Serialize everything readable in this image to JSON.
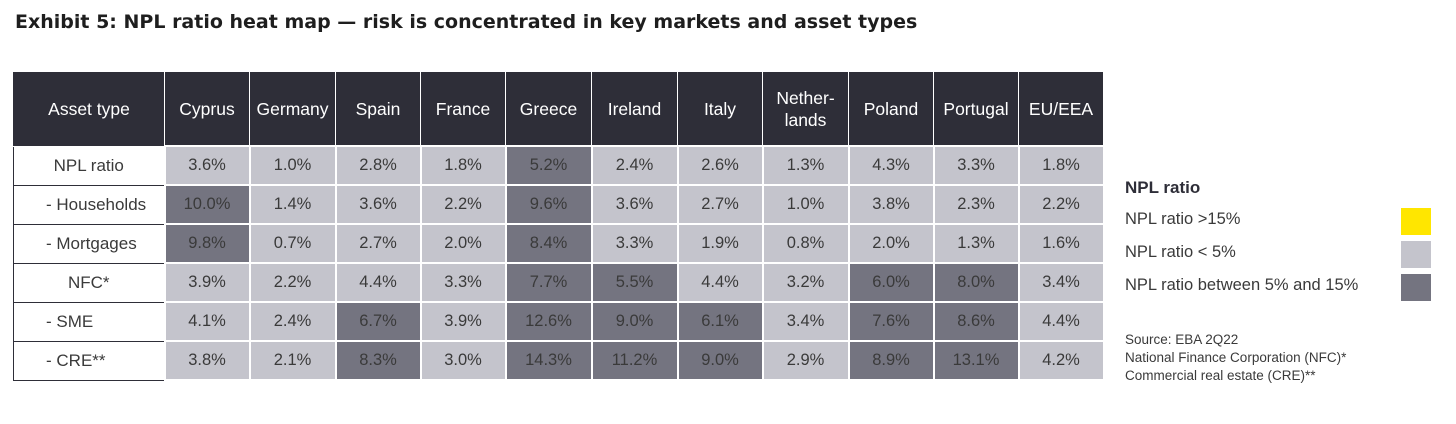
{
  "title": "Exhibit 5: NPL ratio heat map — risk is concentrated in key markets and asset types",
  "colors": {
    "header_bg": "#2e2e38",
    "npl_above_15": "#ffe600",
    "npl_below_5": "#c4c4cc",
    "npl_between_5_15": "#747480"
  },
  "chart_data": {
    "type": "heatmap",
    "title": "Exhibit 5: NPL ratio heat map — risk is concentrated in key markets and asset types",
    "corner_label": "Asset type",
    "columns": [
      "Cyprus",
      "Germany",
      "Spain",
      "France",
      "Greece",
      "Ireland",
      "Italy",
      "Nether-\nlands",
      "Poland",
      "Portugal",
      "EU/EEA"
    ],
    "rows": [
      {
        "label": "NPL ratio",
        "sub": false,
        "values": [
          3.6,
          1.0,
          2.8,
          1.8,
          5.2,
          2.4,
          2.6,
          1.3,
          4.3,
          3.3,
          1.8
        ]
      },
      {
        "label": "- Households",
        "sub": true,
        "values": [
          10.0,
          1.4,
          3.6,
          2.2,
          9.6,
          3.6,
          2.7,
          1.0,
          3.8,
          2.3,
          2.2
        ]
      },
      {
        "label": "- Mortgages",
        "sub": true,
        "values": [
          9.8,
          0.7,
          2.7,
          2.0,
          8.4,
          3.3,
          1.9,
          0.8,
          2.0,
          1.3,
          1.6
        ]
      },
      {
        "label": "NFC*",
        "sub": false,
        "values": [
          3.9,
          2.2,
          4.4,
          3.3,
          7.7,
          5.5,
          4.4,
          3.2,
          6.0,
          8.0,
          3.4
        ]
      },
      {
        "label": "- SME",
        "sub": true,
        "values": [
          4.1,
          2.4,
          6.7,
          3.9,
          12.6,
          9.0,
          6.1,
          3.4,
          7.6,
          8.6,
          4.4
        ]
      },
      {
        "label": "- CRE**",
        "sub": true,
        "values": [
          3.8,
          2.1,
          8.3,
          3.0,
          14.3,
          11.2,
          9.0,
          2.9,
          8.9,
          13.1,
          4.2
        ]
      }
    ],
    "unit": "%"
  },
  "legend": {
    "title": "NPL ratio",
    "items": [
      {
        "label": "NPL ratio >15%",
        "color": "#ffe600"
      },
      {
        "label": "NPL ratio < 5%",
        "color": "#c4c4cc"
      },
      {
        "label": "NPL ratio between 5% and 15%",
        "color": "#747480"
      }
    ]
  },
  "source": {
    "line1": "Source: EBA 2Q22",
    "line2": "National Finance Corporation (NFC)*",
    "line3": "Commercial real estate (CRE)**"
  }
}
